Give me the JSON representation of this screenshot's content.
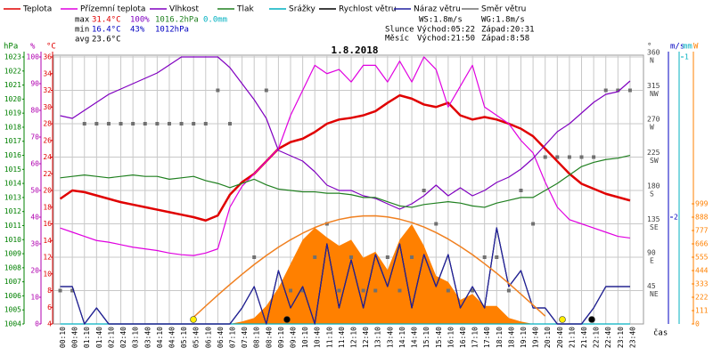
{
  "chart_data": {
    "type": "line",
    "title": "1.8.2018",
    "x_label": "čas",
    "grid": true,
    "categories": [
      "00:10",
      "00:40",
      "01:10",
      "01:40",
      "02:10",
      "02:40",
      "03:10",
      "03:40",
      "04:10",
      "04:40",
      "05:10",
      "05:40",
      "06:10",
      "06:40",
      "07:10",
      "07:40",
      "08:10",
      "08:40",
      "09:10",
      "09:40",
      "10:10",
      "10:40",
      "11:10",
      "11:40",
      "12:10",
      "12:40",
      "13:10",
      "13:40",
      "14:10",
      "14:40",
      "15:10",
      "15:40",
      "16:10",
      "16:40",
      "17:10",
      "17:40",
      "18:10",
      "18:40",
      "19:10",
      "19:40",
      "20:10",
      "20:40",
      "21:10",
      "21:40",
      "22:10",
      "22:40",
      "23:10",
      "23:40"
    ],
    "axes": [
      {
        "label": "hPa",
        "color": "#008000",
        "lim": [
          1004,
          1023
        ],
        "ticks": [
          1004,
          1005,
          1006,
          1007,
          1008,
          1009,
          1010,
          1011,
          1012,
          1013,
          1014,
          1015,
          1016,
          1017,
          1018,
          1019,
          1020,
          1021,
          1022,
          1023
        ]
      },
      {
        "label": "%",
        "color": "#b000b0",
        "lim": [
          0,
          100
        ],
        "ticks": [
          0,
          10,
          20,
          30,
          40,
          50,
          60,
          70,
          80,
          90,
          100
        ]
      },
      {
        "label": "°C",
        "color": "#e00000",
        "lim": [
          4,
          36
        ],
        "ticks": [
          4,
          6,
          8,
          10,
          12,
          14,
          16,
          18,
          20,
          22,
          24,
          26,
          28,
          30,
          32,
          34,
          36
        ]
      },
      {
        "label": "°",
        "color": "#404040",
        "lim": [
          0,
          360
        ],
        "ticks": [
          45,
          90,
          135,
          180,
          225,
          270,
          315,
          360
        ],
        "compass": [
          "NE",
          "E",
          "SE",
          "S",
          "SW",
          "W",
          "NW",
          "N"
        ]
      },
      {
        "label": "m/s",
        "color": "#0000c0",
        "lim": [
          0,
          5
        ],
        "ticks": [
          2
        ]
      },
      {
        "label": "mm",
        "color": "#00b0c0",
        "lim": [
          0,
          1
        ],
        "ticks": [
          1
        ]
      },
      {
        "label": "W",
        "color": "#ff8000",
        "lim": [
          0,
          2220
        ],
        "ticks": [
          0,
          111,
          222,
          333,
          444,
          555,
          666,
          777,
          888,
          999
        ]
      }
    ],
    "series": [
      {
        "name": "Teplota",
        "color": "#e00000",
        "axis": 2,
        "kind": "line",
        "values": [
          19,
          20,
          19.8,
          19.4,
          19,
          18.6,
          18.3,
          18,
          17.7,
          17.4,
          17.1,
          16.8,
          16.4,
          17,
          19.5,
          21,
          22,
          23.5,
          25,
          25.8,
          26.2,
          27,
          28,
          28.5,
          28.7,
          29,
          29.5,
          30.5,
          31.4,
          31,
          30.3,
          30,
          30.5,
          29,
          28.5,
          28.8,
          28.5,
          28,
          27.4,
          26.5,
          25,
          23.5,
          22,
          20.8,
          20.2,
          19.6,
          19.2,
          18.8
        ]
      },
      {
        "name": "Přízemní teplota",
        "color": "#e000e0",
        "axis": 2,
        "kind": "line",
        "values": [
          15.5,
          15,
          14.5,
          14,
          13.8,
          13.5,
          13.2,
          13,
          12.8,
          12.5,
          12.3,
          12.2,
          12.5,
          13,
          18,
          20.5,
          22,
          23.5,
          25,
          29,
          32,
          35,
          34,
          34.5,
          33,
          35,
          35,
          33,
          35.5,
          33,
          36,
          34.5,
          30,
          32.5,
          35,
          30,
          29,
          28,
          26,
          24.5,
          21,
          18,
          16.5,
          16,
          15.5,
          15,
          14.5,
          14.3
        ]
      },
      {
        "name": "Vlhkost",
        "color": "#8000c0",
        "axis": 1,
        "kind": "line",
        "values": [
          78,
          77,
          80,
          83,
          86,
          88,
          90,
          92,
          94,
          97,
          100,
          100,
          100,
          100,
          96,
          90,
          84,
          77,
          65,
          63,
          61,
          57,
          52,
          50,
          50,
          48,
          47,
          45,
          43,
          45,
          48,
          52,
          48,
          51,
          48,
          50,
          53,
          55,
          58,
          62,
          67,
          72,
          75,
          79,
          83,
          86,
          87,
          91
        ]
      },
      {
        "name": "Tlak",
        "color": "#208020",
        "axis": 0,
        "kind": "line",
        "values": [
          1014.4,
          1014.5,
          1014.6,
          1014.5,
          1014.4,
          1014.5,
          1014.6,
          1014.5,
          1014.5,
          1014.3,
          1014.4,
          1014.5,
          1014.2,
          1014.0,
          1013.7,
          1014.0,
          1014.3,
          1013.9,
          1013.6,
          1013.5,
          1013.4,
          1013.4,
          1013.3,
          1013.3,
          1013.2,
          1013.0,
          1013.0,
          1012.7,
          1012.4,
          1012.3,
          1012.5,
          1012.6,
          1012.7,
          1012.6,
          1012.4,
          1012.3,
          1012.6,
          1012.8,
          1013.0,
          1013.0,
          1013.5,
          1014.0,
          1014.6,
          1015.2,
          1015.5,
          1015.7,
          1015.8,
          1016.0
        ]
      },
      {
        "name": "Srážky",
        "color": "#00b0c0",
        "axis": 5,
        "kind": "line",
        "values": [
          0,
          0,
          0,
          0,
          0,
          0,
          0,
          0,
          0,
          0,
          0,
          0,
          0,
          0,
          0,
          0,
          0,
          0,
          0,
          0,
          0,
          0,
          0,
          0,
          0,
          0,
          0,
          0,
          0,
          0,
          0,
          0,
          0,
          0,
          0,
          0,
          0,
          0,
          0,
          0,
          0,
          0,
          0,
          0,
          0,
          0,
          0,
          0
        ]
      },
      {
        "name": "Rychlost větru",
        "color": "#000000",
        "axis": 4,
        "kind": "line",
        "values": [
          0.7,
          0.7,
          0,
          0.3,
          0,
          0,
          0,
          0,
          0,
          0,
          0,
          0,
          0,
          0,
          0,
          0.3,
          0.7,
          0,
          1.0,
          0.3,
          0.7,
          0,
          1.5,
          0.3,
          1.2,
          0.3,
          1.3,
          0.7,
          1.5,
          0.3,
          1.3,
          0.7,
          1.3,
          0.3,
          0.7,
          0.3,
          1.8,
          0.7,
          1.0,
          0.3,
          0.3,
          0,
          0,
          0,
          0.3,
          0.7,
          0.7,
          0.7
        ]
      },
      {
        "name": "Náraz větru",
        "color": "#2020a0",
        "axis": 4,
        "kind": "line",
        "values": [
          0.7,
          0.7,
          0,
          0.3,
          0,
          0,
          0,
          0,
          0,
          0,
          0,
          0,
          0,
          0,
          0,
          0.3,
          0.7,
          0,
          1.0,
          0.3,
          0.7,
          0,
          1.5,
          0.3,
          1.2,
          0.3,
          1.3,
          0.7,
          1.5,
          0.3,
          1.3,
          0.7,
          1.3,
          0.3,
          0.7,
          0.3,
          1.8,
          0.7,
          1.0,
          0.3,
          0.3,
          0,
          0,
          0,
          0.3,
          0.7,
          0.7,
          0.7
        ]
      },
      {
        "name": "Směr větru",
        "color": "#707070",
        "axis": 3,
        "kind": "points",
        "values": [
          45,
          45,
          270,
          270,
          270,
          270,
          270,
          270,
          270,
          270,
          270,
          270,
          270,
          315,
          270,
          null,
          90,
          315,
          null,
          45,
          45,
          90,
          135,
          45,
          90,
          45,
          45,
          90,
          45,
          90,
          180,
          135,
          45,
          null,
          45,
          90,
          90,
          45,
          180,
          135,
          225,
          225,
          225,
          225,
          225,
          315,
          315,
          315
        ]
      },
      {
        "color": "#ff8000",
        "axis": 6,
        "kind": "area",
        "values": [
          0,
          0,
          0,
          0,
          0,
          0,
          0,
          0,
          0,
          0,
          0,
          0,
          0,
          0,
          0,
          20,
          50,
          150,
          300,
          500,
          700,
          800,
          720,
          650,
          700,
          550,
          600,
          450,
          700,
          830,
          650,
          400,
          350,
          200,
          250,
          150,
          150,
          50,
          20,
          0,
          0,
          0,
          0,
          0,
          0,
          0,
          0,
          0
        ]
      },
      {
        "color": "#f08020",
        "axis": 6,
        "kind": "line",
        "values": [
          null,
          null,
          null,
          null,
          null,
          null,
          null,
          null,
          null,
          null,
          null,
          56,
          149,
          240,
          328,
          413,
          494,
          569,
          638,
          700,
          755,
          802,
          840,
          869,
          888,
          898,
          899,
          890,
          871,
          843,
          806,
          760,
          706,
          644,
          576,
          501,
          422,
          337,
          247,
          158,
          65,
          null,
          null,
          null,
          null,
          null,
          null,
          null
        ]
      }
    ],
    "stats": {
      "max": {
        "label": "max",
        "temp": "31.4°C",
        "hum": "100%",
        "press": "1016.2hPa",
        "rain": "0.0mm"
      },
      "min": {
        "label": "min",
        "temp": "16.4°C",
        "hum": "43%",
        "press": "1012hPa"
      },
      "avg": {
        "label": "avg",
        "temp": "23.6°C"
      },
      "ws": "WS:1.8m/s",
      "wg": "WG:1.8m/s",
      "sun": {
        "label": "Slunce",
        "rise": "Východ:05:22",
        "set": "Západ:20:31"
      },
      "moon": {
        "label": "Měsíc",
        "rise": "Východ:21:50",
        "set": "Západ:8:58"
      }
    }
  }
}
